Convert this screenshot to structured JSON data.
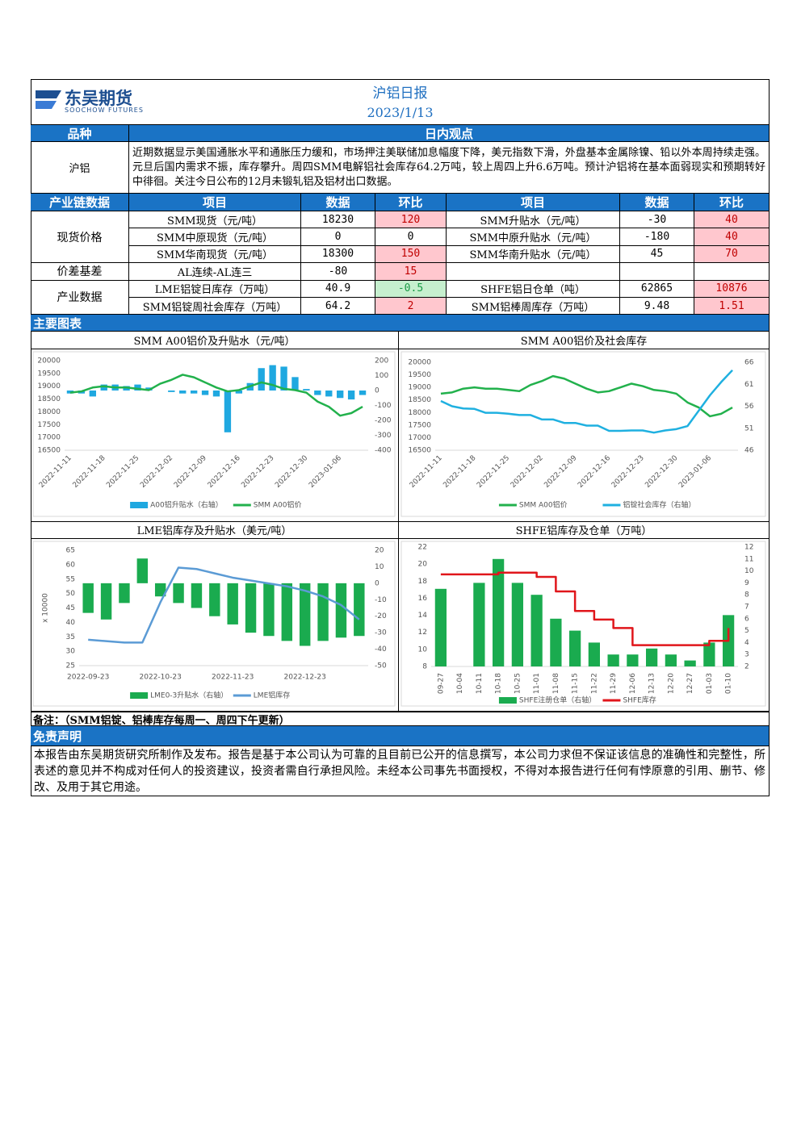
{
  "header": {
    "logo_cn": "东吴期货",
    "logo_en": "SOOCHOW FUTURES",
    "title": "沪铝日报",
    "date": "2023/1/13"
  },
  "view": {
    "col1": "品种",
    "col2": "日内观点",
    "variety": "沪铝",
    "text": "近期数据显示美国通胀水平和通胀压力缓和，市场押注美联储加息幅度下降，美元指数下滑，外盘基本金属除镍、铅以外本周持续走强。元旦后国内需求不振，库存攀升。周四SMM电解铝社会库存64.2万吨，较上周四上升6.6万吨。预计沪铝将在基本面弱现实和预期转好中徘徊。关注今日公布的12月未锻轧铝及铝材出口数据。"
  },
  "table": {
    "headers": [
      "产业链数据",
      "项目",
      "数据",
      "环比",
      "项目",
      "数据",
      "环比"
    ],
    "groups": [
      {
        "label": "现货价格",
        "rows": [
          [
            "SMM现货（元/吨）",
            18230,
            120,
            "SMM升贴水（元/吨）",
            -30,
            40
          ],
          [
            "SMM中原现货（元/吨）",
            0,
            0,
            "SMM中原升贴水（元/吨）",
            -180,
            40
          ],
          [
            "SMM华南现货（元/吨）",
            18300,
            150,
            "SMM华南升贴水（元/吨）",
            45,
            70
          ]
        ]
      },
      {
        "label": "价差基差",
        "rows": [
          [
            "AL连续-AL连三",
            -80,
            15
          ]
        ]
      },
      {
        "label": "产业数据",
        "rows": [
          [
            "LME铝锭日库存（万吨）",
            40.9,
            -0.5,
            "SHFE铝日仓单（吨）",
            62865,
            10876
          ],
          [
            "SMM铝锭周社会库存（万吨）",
            64.2,
            2,
            "SMM铝棒周库存（万吨）",
            9.48,
            1.51
          ]
        ]
      }
    ]
  },
  "section_title": "主要图表",
  "chart_data": [
    {
      "type": "combo",
      "title": "SMM A00铝价及升贴水（元/吨）",
      "categories": [
        "2022-11-11",
        null,
        null,
        "2022-11-18",
        null,
        null,
        "2022-11-25",
        null,
        null,
        "2022-12-02",
        null,
        null,
        "2022-12-09",
        null,
        null,
        "2022-12-16",
        null,
        null,
        "2022-12-23",
        null,
        null,
        "2022-12-30",
        null,
        null,
        "2023-01-06",
        null,
        null
      ],
      "ylim": [
        16500,
        20000
      ],
      "yticks": [
        16500,
        17000,
        17500,
        18000,
        18500,
        19000,
        19500,
        20000
      ],
      "y2lim": [
        -400,
        200
      ],
      "y2ticks": [
        -400,
        -300,
        -200,
        -100,
        0,
        100,
        200
      ],
      "series": [
        {
          "name": "A00铝升贴水（右轴）",
          "type": "bar",
          "axis": "y2",
          "color": "#1fa8e0",
          "values": [
            -20,
            -20,
            -40,
            40,
            40,
            30,
            40,
            20,
            0,
            -10,
            -20,
            -20,
            -30,
            -40,
            -280,
            -20,
            50,
            150,
            170,
            160,
            90,
            10,
            -30,
            -40,
            -50,
            -60,
            -30
          ]
        },
        {
          "name": "SMM A00铝价",
          "type": "line",
          "color": "#22b14c",
          "values": [
            18750,
            18800,
            18950,
            19000,
            18950,
            18950,
            18900,
            18850,
            19100,
            19250,
            19450,
            19350,
            19150,
            18950,
            18800,
            18850,
            19000,
            19150,
            19050,
            18900,
            18850,
            18750,
            18400,
            18200,
            17850,
            17950,
            18200
          ]
        }
      ]
    },
    {
      "type": "line",
      "title": "SMM A00铝价及社会库存",
      "categories": [
        "2022-11-11",
        null,
        null,
        "2022-11-18",
        null,
        null,
        "2022-11-25",
        null,
        null,
        "2022-12-02",
        null,
        null,
        "2022-12-09",
        null,
        null,
        "2022-12-16",
        null,
        null,
        "2022-12-23",
        null,
        null,
        "2022-12-30",
        null,
        null,
        "2023-01-06",
        null,
        null
      ],
      "ylim": [
        16500,
        20000
      ],
      "yticks": [
        16500,
        17000,
        17500,
        18000,
        18500,
        19000,
        19500,
        20000
      ],
      "y2lim": [
        46,
        66
      ],
      "y2ticks": [
        46,
        51,
        56,
        61,
        66
      ],
      "series": [
        {
          "name": "SMM A00铝价",
          "type": "line",
          "color": "#22b14c",
          "values": [
            18750,
            18800,
            18950,
            19000,
            18950,
            18950,
            18900,
            18850,
            19100,
            19250,
            19450,
            19350,
            19150,
            18950,
            18800,
            18850,
            19000,
            19150,
            19050,
            18900,
            18850,
            18750,
            18400,
            18200,
            17850,
            17950,
            18200
          ]
        },
        {
          "name": "铝锭社会库存（右轴）",
          "type": "line",
          "axis": "y2",
          "color": "#1fb0e0",
          "values": [
            57.2,
            56,
            55.5,
            55.4,
            54.5,
            54.5,
            54.3,
            54,
            54,
            53,
            53,
            52.2,
            52.2,
            51.6,
            51.6,
            50.4,
            50.4,
            50.5,
            50.5,
            50,
            50.5,
            50.8,
            51.5,
            55,
            58.5,
            61.5,
            64.2
          ]
        }
      ]
    },
    {
      "type": "combo",
      "title": "LME铝库存及升贴水（美元/吨）",
      "y_unit_label": "x 10000",
      "categories": [
        "2022-09-23",
        null,
        null,
        null,
        "2022-10-23",
        null,
        null,
        null,
        "2022-11-23",
        null,
        null,
        null,
        "2022-12-23",
        null,
        null,
        null
      ],
      "ylim": [
        25,
        65
      ],
      "yticks": [
        25,
        30,
        35,
        40,
        45,
        50,
        55,
        60,
        65
      ],
      "y2lim": [
        -50,
        20
      ],
      "y2ticks": [
        -50,
        -40,
        -30,
        -20,
        -10,
        0,
        10,
        20
      ],
      "series": [
        {
          "name": "LME0-3升贴水（右轴）",
          "type": "bar",
          "axis": "y2",
          "color": "#1aab4f",
          "values": [
            -18,
            -22,
            -12,
            15,
            -8,
            -12,
            -15,
            -20,
            -25,
            -30,
            -32,
            -35,
            -38,
            -35,
            -33,
            -32
          ]
        },
        {
          "name": "LME铝库存",
          "type": "line",
          "color": "#5b9bd5",
          "values": [
            34,
            33.5,
            33,
            33,
            47,
            59,
            58.5,
            57,
            55.5,
            54.5,
            53.5,
            52.5,
            51,
            49,
            46,
            41
          ]
        }
      ]
    },
    {
      "type": "combo",
      "title": "SHFE铝库存及仓单（万吨）",
      "categories": [
        "09-27",
        "10-04",
        "10-11",
        "10-18",
        "10-25",
        "11-01",
        "11-08",
        "11-15",
        "11-22",
        "11-29",
        "12-06",
        "12-13",
        "12-20",
        "12-27",
        "01-03",
        "01-10"
      ],
      "ylim": [
        8,
        22
      ],
      "yticks": [
        8,
        10,
        12,
        14,
        16,
        18,
        20,
        22
      ],
      "y2lim": [
        2,
        12
      ],
      "y2ticks": [
        2,
        3,
        4,
        5,
        6,
        7,
        8,
        9,
        10,
        11,
        12
      ],
      "series": [
        {
          "name": "SHFE注册仓单（右轴）",
          "type": "bar",
          "axis": "y2",
          "color": "#1aab4f",
          "values": [
            8.5,
            null,
            9,
            11,
            9,
            8,
            6,
            5,
            4,
            3,
            3,
            3.5,
            3,
            2.5,
            4,
            6.3
          ]
        },
        {
          "name": "SHFE库存",
          "type": "line",
          "step": true,
          "color": "#e0161b",
          "values": [
            18.8,
            18.8,
            18.8,
            19,
            19,
            18.5,
            16.8,
            14.5,
            13.5,
            12.5,
            10.5,
            10.5,
            10.5,
            10.5,
            11,
            12.5
          ]
        }
      ]
    }
  ],
  "note": "备注：（SMM铝锭、铝棒库存每周一、周四下午更新）",
  "disclaimer": {
    "title": "免责声明",
    "text": "本报告由东吴期货研究所制作及发布。报告是基于本公司认为可靠的且目前已公开的信息撰写，本公司力求但不保证该信息的准确性和完整性，所表述的意见并不构成对任何人的投资建议，投资者需自行承担风险。未经本公司事先书面授权，不得对本报告进行任何有悖原意的引用、删节、修改、及用于其它用途。"
  }
}
